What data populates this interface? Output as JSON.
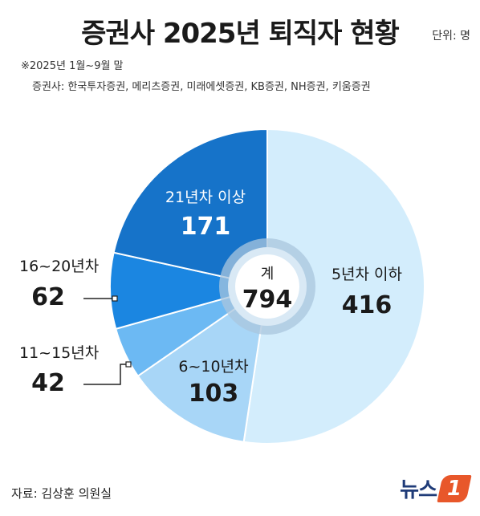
{
  "header": {
    "title": "증권사 2025년 퇴직자 현황",
    "unit": "단위: 명",
    "note": "※2025년 1월~9월 말",
    "companies": "증권사: 한국투자증권, 메리츠증권, 미래에셋증권, KB증권, NH증권, 키움증권"
  },
  "chart_data": {
    "type": "pie",
    "style": "donut",
    "center_label": "계",
    "total": 794,
    "categories": [
      "5년차 이하",
      "6~10년차",
      "11~15년차",
      "16~20년차",
      "21년차 이상"
    ],
    "values": [
      416,
      103,
      42,
      62,
      171
    ],
    "colors": [
      "#d3edfc",
      "#a8d6f7",
      "#6cb9f3",
      "#1b86e1",
      "#1673c9"
    ]
  },
  "footer": {
    "source": "자료: 김상훈 의원실",
    "logo_text": "뉴스",
    "logo_mark": "1"
  }
}
